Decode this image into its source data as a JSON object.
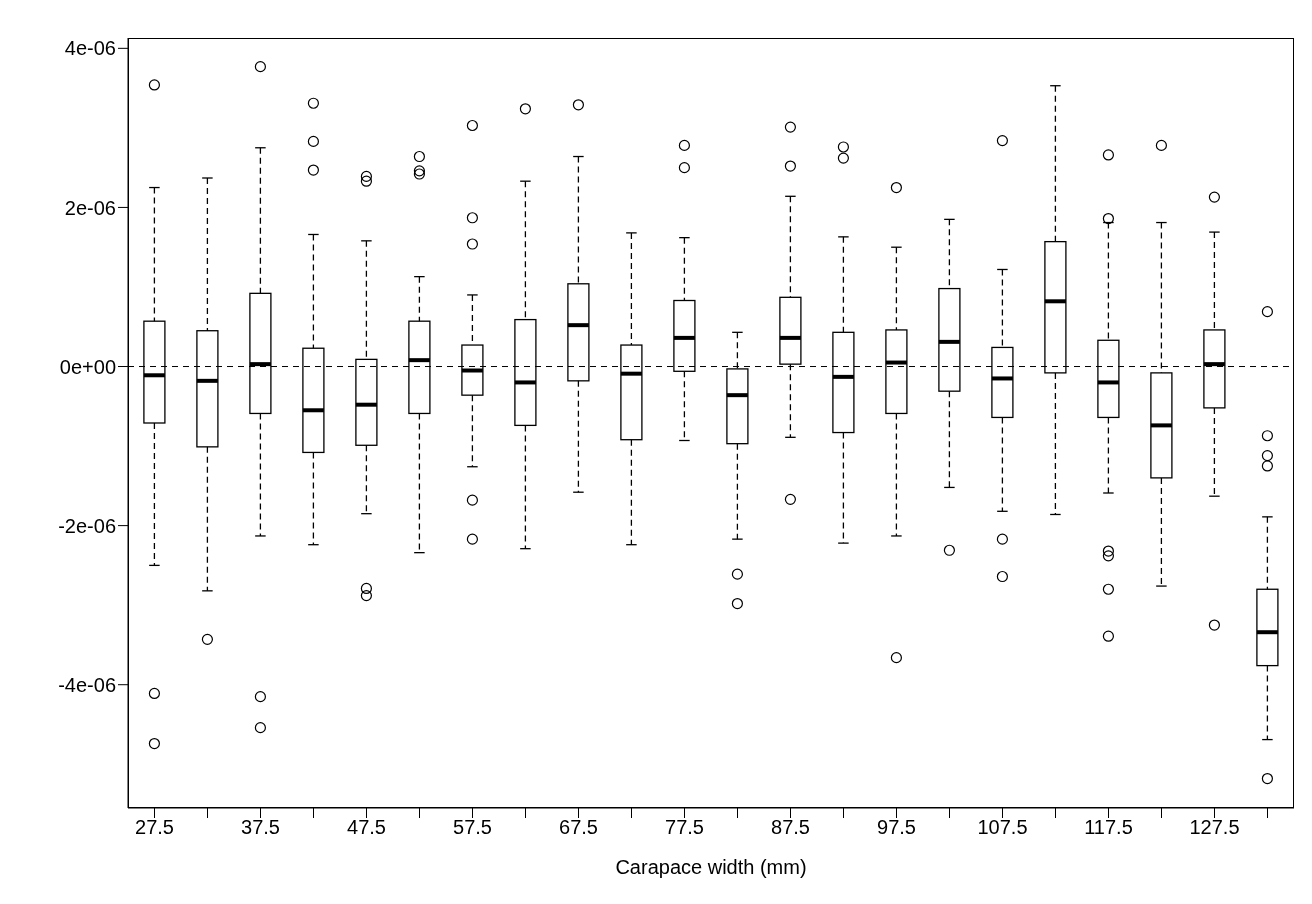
{
  "chart_data": {
    "type": "box",
    "xlabel": "Carapace width (mm)",
    "categories": [
      "27.5",
      null,
      "37.5",
      null,
      "47.5",
      null,
      "57.5",
      null,
      "67.5",
      null,
      "77.5",
      null,
      "87.5",
      null,
      "97.5",
      null,
      "107.5",
      null,
      "117.5",
      null,
      "127.5",
      null
    ],
    "boxes": [
      {
        "low": -2.5e-06,
        "q1": -7.1e-07,
        "median": -1.1e-07,
        "q3": 5.7e-07,
        "high": 2.25e-06,
        "outliers": [
          3.54e-06,
          -4.11e-06,
          -4.74e-06
        ]
      },
      {
        "low": -2.82e-06,
        "q1": -1.01e-06,
        "median": -1.8e-07,
        "q3": 4.5e-07,
        "high": 2.37e-06,
        "outliers": [
          -3.43e-06
        ]
      },
      {
        "low": -2.13e-06,
        "q1": -5.9e-07,
        "median": 3e-08,
        "q3": 9.2e-07,
        "high": 2.75e-06,
        "outliers": [
          3.77e-06,
          -4.15e-06,
          -4.54e-06
        ]
      },
      {
        "low": -2.24e-06,
        "q1": -1.08e-06,
        "median": -5.5e-07,
        "q3": 2.3e-07,
        "high": 1.66e-06,
        "outliers": [
          3.31e-06,
          2.83e-06,
          2.47e-06
        ]
      },
      {
        "low": -1.85e-06,
        "q1": -9.9e-07,
        "median": -4.8e-07,
        "q3": 9e-08,
        "high": 1.58e-06,
        "outliers": [
          2.39e-06,
          2.33e-06,
          -2.79e-06,
          -2.88e-06
        ]
      },
      {
        "low": -2.34e-06,
        "q1": -5.9e-07,
        "median": 8e-08,
        "q3": 5.7e-07,
        "high": 1.13e-06,
        "outliers": [
          2.64e-06,
          2.46e-06,
          2.42e-06
        ]
      },
      {
        "low": -1.26e-06,
        "q1": -3.6e-07,
        "median": -5e-08,
        "q3": 2.7e-07,
        "high": 9e-07,
        "outliers": [
          3.03e-06,
          1.87e-06,
          1.54e-06,
          -1.68e-06,
          -2.17e-06
        ]
      },
      {
        "low": -2.29e-06,
        "q1": -7.4e-07,
        "median": -2e-07,
        "q3": 5.9e-07,
        "high": 2.33e-06,
        "outliers": [
          3.24e-06
        ]
      },
      {
        "low": -1.58e-06,
        "q1": -1.8e-07,
        "median": 5.2e-07,
        "q3": 1.04e-06,
        "high": 2.64e-06,
        "outliers": [
          3.29e-06
        ]
      },
      {
        "low": -2.24e-06,
        "q1": -9.2e-07,
        "median": -9e-08,
        "q3": 2.7e-07,
        "high": 1.68e-06
      },
      {
        "low": -9.3e-07,
        "q1": -6e-08,
        "median": 3.6e-07,
        "q3": 8.3e-07,
        "high": 1.62e-06,
        "outliers": [
          2.78e-06,
          2.5e-06
        ]
      },
      {
        "low": -2.17e-06,
        "q1": -9.7e-07,
        "median": -3.6e-07,
        "q3": -3e-08,
        "high": 4.3e-07,
        "outliers": [
          -2.61e-06,
          -2.98e-06
        ]
      },
      {
        "low": -8.9e-07,
        "q1": 3e-08,
        "median": 3.6e-07,
        "q3": 8.7e-07,
        "high": 2.14e-06,
        "outliers": [
          3.01e-06,
          2.52e-06,
          -1.67e-06
        ]
      },
      {
        "low": -2.22e-06,
        "q1": -8.3e-07,
        "median": -1.3e-07,
        "q3": 4.3e-07,
        "high": 1.63e-06,
        "outliers": [
          2.76e-06,
          2.62e-06
        ]
      },
      {
        "low": -2.13e-06,
        "q1": -5.9e-07,
        "median": 5e-08,
        "q3": 4.6e-07,
        "high": 1.5e-06,
        "outliers": [
          2.25e-06,
          -3.66e-06
        ]
      },
      {
        "low": -1.52e-06,
        "q1": -3.1e-07,
        "median": 3.1e-07,
        "q3": 9.8e-07,
        "high": 1.85e-06,
        "outliers": [
          -2.31e-06
        ]
      },
      {
        "low": -1.82e-06,
        "q1": -6.4e-07,
        "median": -1.5e-07,
        "q3": 2.4e-07,
        "high": 1.22e-06,
        "outliers": [
          2.84e-06,
          -2.17e-06,
          -2.64e-06
        ]
      },
      {
        "low": -1.86e-06,
        "q1": -8e-08,
        "median": 8.2e-07,
        "q3": 1.57e-06,
        "high": 3.53e-06
      },
      {
        "low": -1.59e-06,
        "q1": -6.4e-07,
        "median": -2e-07,
        "q3": 3.3e-07,
        "high": 1.81e-06,
        "outliers": [
          2.66e-06,
          1.86e-06,
          -2.32e-06,
          -2.38e-06,
          -2.8e-06,
          -3.39e-06
        ]
      },
      {
        "low": -2.76e-06,
        "q1": -1.4e-06,
        "median": -7.4e-07,
        "q3": -8e-08,
        "high": 1.81e-06,
        "outliers": [
          2.78e-06
        ]
      },
      {
        "low": -1.63e-06,
        "q1": -5.2e-07,
        "median": 3e-08,
        "q3": 4.6e-07,
        "high": 1.69e-06,
        "outliers": [
          2.13e-06,
          -3.25e-06
        ]
      },
      {
        "low": -4.69e-06,
        "q1": -3.76e-06,
        "median": -3.34e-06,
        "q3": -2.8e-06,
        "high": -1.89e-06,
        "outliers": [
          6.9e-07,
          -8.7e-07,
          -1.12e-06,
          -1.25e-06,
          -5.18e-06
        ]
      }
    ],
    "ylim": [
      -5.55e-06,
      4.13e-06
    ],
    "yticks": [
      {
        "value": -4e-06,
        "label": "-4e-06"
      },
      {
        "value": -2e-06,
        "label": "-2e-06"
      },
      {
        "value": 0,
        "label": "0e+00"
      },
      {
        "value": 2e-06,
        "label": "2e-06"
      },
      {
        "value": 4e-06,
        "label": "4e-06"
      }
    ],
    "ref_lines": [
      {
        "axis": "y",
        "value": 0,
        "line_style": "dashed",
        "color": "#000000"
      }
    ],
    "grid": false,
    "legend": false,
    "color": "#000000"
  }
}
